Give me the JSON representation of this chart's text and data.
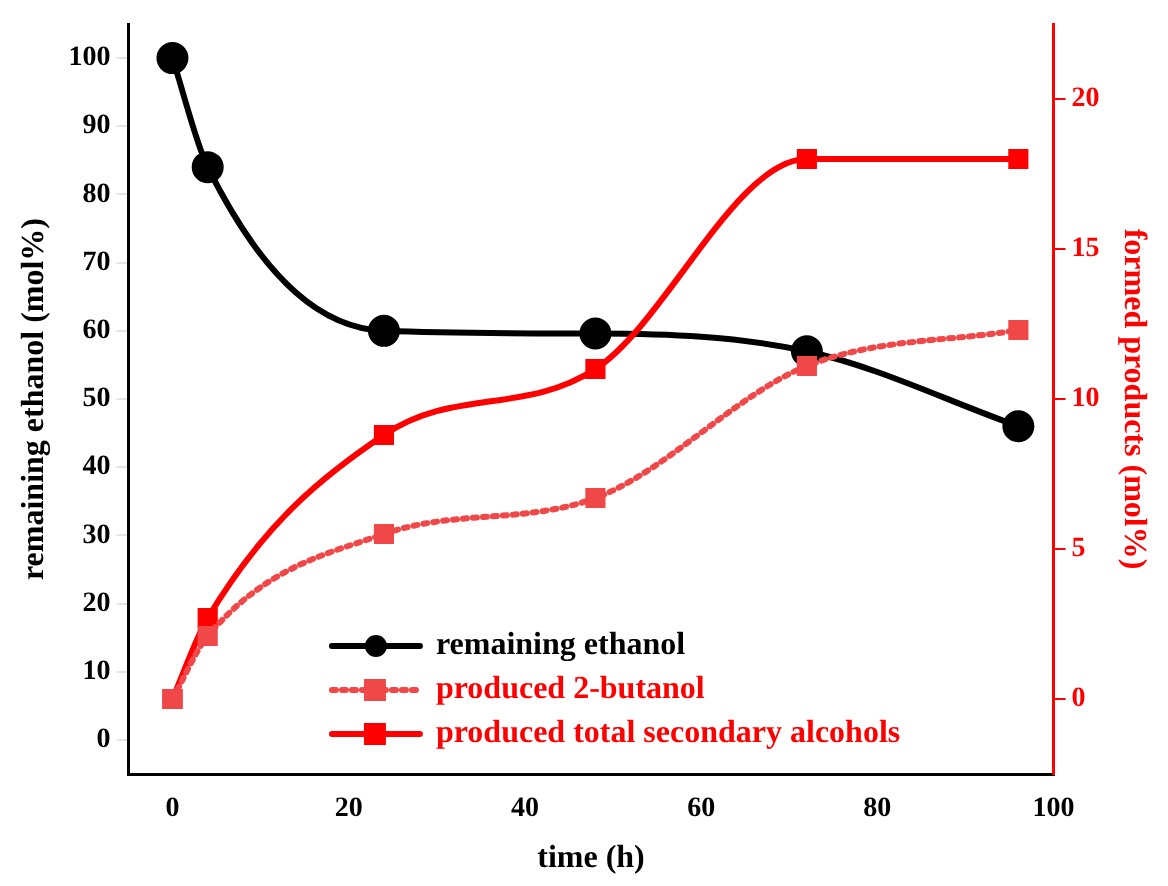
{
  "chart_data": {
    "type": "line",
    "xlabel": "time (h)",
    "ylabel": "remaining ethanol (mol%)",
    "y2label": "formed products (mol%)",
    "x": [
      0,
      4,
      24,
      48,
      72,
      96
    ],
    "series": [
      {
        "name": "remaining ethanol",
        "color": "#000000",
        "marker": "circle",
        "line_style": "solid",
        "values": [
          100,
          84,
          60,
          59.6,
          57,
          46
        ]
      },
      {
        "name": "produced 2-butanol",
        "color": "#f04848",
        "marker": "square",
        "line_style": "dotted",
        "axis": "y2",
        "values": [
          0,
          2.1,
          5.5,
          6.7,
          11.1,
          12.3
        ]
      },
      {
        "name": "produced total secondary alcohols",
        "color": "#ff0000",
        "marker": "square",
        "line_style": "solid",
        "axis": "y2",
        "values": [
          0,
          2.7,
          8.8,
          11,
          18,
          18
        ]
      }
    ],
    "xlim": [
      -5,
      100
    ],
    "xticks": [
      0,
      20,
      40,
      60,
      80,
      100
    ],
    "ylim": [
      -5,
      105
    ],
    "yticks": [
      0,
      10,
      20,
      30,
      40,
      50,
      60,
      70,
      80,
      90,
      100
    ],
    "y2lim": [
      -2.5,
      22.5
    ],
    "y2ticks": [
      0,
      5,
      10,
      15,
      20
    ],
    "grid": false,
    "legend": "bottom"
  }
}
